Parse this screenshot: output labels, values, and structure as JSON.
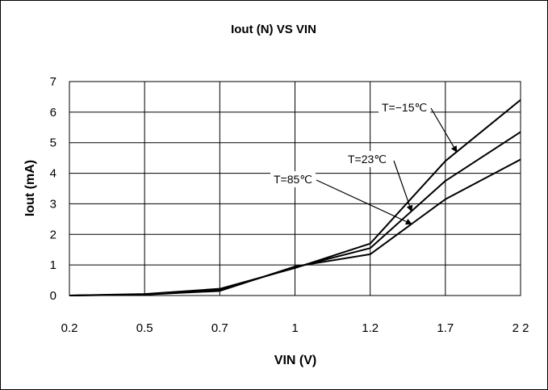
{
  "chart_data": {
    "type": "line",
    "title": "Iout (N) VS  VIN",
    "xlabel": "VIN (V)",
    "ylabel": "Iout (mA)",
    "categories": [
      "0.2",
      "0.5",
      "0.7",
      "1",
      "1.2",
      "1.7",
      "2 2"
    ],
    "ylim": [
      0,
      7
    ],
    "yticks": [
      "0",
      "1",
      "2",
      "3",
      "4",
      "5",
      "6",
      "7"
    ],
    "grid": true,
    "series": [
      {
        "name": "T=-15℃",
        "values": [
          0.0,
          0.05,
          0.22,
          0.9,
          1.7,
          4.4,
          6.4
        ]
      },
      {
        "name": "T=23℃",
        "values": [
          0.0,
          0.04,
          0.18,
          0.92,
          1.55,
          3.75,
          5.35
        ]
      },
      {
        "name": "T=85℃",
        "values": [
          0.0,
          0.03,
          0.15,
          0.95,
          1.35,
          3.15,
          4.45
        ]
      }
    ],
    "annotations": [
      {
        "text": "T=−15℃",
        "series": 0
      },
      {
        "text": "T=23℃",
        "series": 1
      },
      {
        "text": "T=85℃",
        "series": 2
      }
    ]
  }
}
